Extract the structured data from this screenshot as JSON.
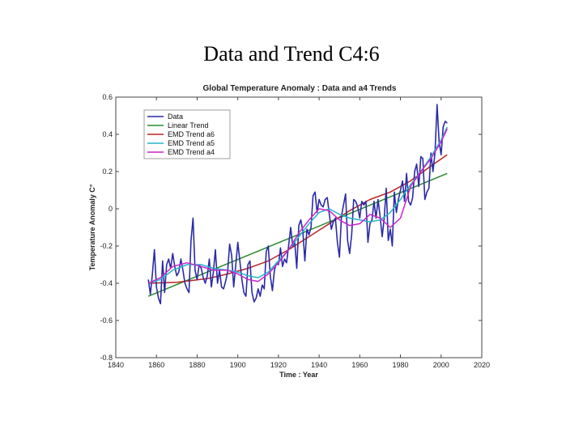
{
  "slide": {
    "title": "Data and Trend C4:6"
  },
  "chart_data": {
    "type": "line",
    "title": "Global Temperature Anomaly : Data and a4 Trends",
    "xlabel": "Time : Year",
    "ylabel": "Temperature Anomaly C°",
    "xlim": [
      1840,
      2020
    ],
    "ylim": [
      -0.8,
      0.6
    ],
    "xticks": [
      1840,
      1860,
      1880,
      1900,
      1920,
      1940,
      1960,
      1980,
      2000,
      2020
    ],
    "yticks": [
      0.6,
      0.4,
      0.2,
      0,
      -0.2,
      -0.4,
      -0.6,
      -0.8
    ],
    "ytick_labels": [
      "0.6",
      "0.4",
      "0.2",
      "0",
      "-0.2",
      "-0.4",
      "-0.6",
      "-0.8"
    ],
    "legend_position": "top-left",
    "series": [
      {
        "name": "Data",
        "color": "#2a2aa8",
        "x": [
          1856,
          1857,
          1858,
          1859,
          1860,
          1861,
          1862,
          1863,
          1864,
          1865,
          1866,
          1867,
          1868,
          1869,
          1870,
          1871,
          1872,
          1873,
          1874,
          1875,
          1876,
          1877,
          1878,
          1879,
          1880,
          1881,
          1882,
          1883,
          1884,
          1885,
          1886,
          1887,
          1888,
          1889,
          1890,
          1891,
          1892,
          1893,
          1894,
          1895,
          1896,
          1897,
          1898,
          1899,
          1900,
          1901,
          1902,
          1903,
          1904,
          1905,
          1906,
          1907,
          1908,
          1909,
          1910,
          1911,
          1912,
          1913,
          1914,
          1915,
          1916,
          1917,
          1918,
          1919,
          1920,
          1921,
          1922,
          1923,
          1924,
          1925,
          1926,
          1927,
          1928,
          1929,
          1930,
          1931,
          1932,
          1933,
          1934,
          1935,
          1936,
          1937,
          1938,
          1939,
          1940,
          1941,
          1942,
          1943,
          1944,
          1945,
          1946,
          1947,
          1948,
          1949,
          1950,
          1951,
          1952,
          1953,
          1954,
          1955,
          1956,
          1957,
          1958,
          1959,
          1960,
          1961,
          1962,
          1963,
          1964,
          1965,
          1966,
          1967,
          1968,
          1969,
          1970,
          1971,
          1972,
          1973,
          1974,
          1975,
          1976,
          1977,
          1978,
          1979,
          1980,
          1981,
          1982,
          1983,
          1984,
          1985,
          1986,
          1987,
          1988,
          1989,
          1990,
          1991,
          1992,
          1993,
          1994,
          1995,
          1996,
          1997,
          1998,
          1999,
          2000,
          2001,
          2002,
          2003
        ],
        "values": [
          -0.38,
          -0.46,
          -0.35,
          -0.22,
          -0.42,
          -0.48,
          -0.51,
          -0.28,
          -0.45,
          -0.3,
          -0.27,
          -0.32,
          -0.24,
          -0.31,
          -0.36,
          -0.34,
          -0.27,
          -0.33,
          -0.4,
          -0.43,
          -0.45,
          -0.17,
          -0.05,
          -0.33,
          -0.38,
          -0.3,
          -0.32,
          -0.37,
          -0.4,
          -0.36,
          -0.27,
          -0.42,
          -0.34,
          -0.22,
          -0.4,
          -0.33,
          -0.42,
          -0.43,
          -0.39,
          -0.34,
          -0.19,
          -0.25,
          -0.42,
          -0.3,
          -0.18,
          -0.28,
          -0.38,
          -0.45,
          -0.47,
          -0.3,
          -0.28,
          -0.45,
          -0.5,
          -0.48,
          -0.43,
          -0.47,
          -0.41,
          -0.43,
          -0.23,
          -0.2,
          -0.36,
          -0.44,
          -0.33,
          -0.29,
          -0.3,
          -0.21,
          -0.31,
          -0.27,
          -0.29,
          -0.2,
          -0.1,
          -0.2,
          -0.18,
          -0.32,
          -0.09,
          -0.06,
          -0.12,
          -0.28,
          -0.11,
          -0.14,
          -0.1,
          0.07,
          0.09,
          -0.02,
          0.05,
          0.02,
          0.01,
          0.05,
          0.06,
          -0.03,
          -0.11,
          -0.07,
          -0.05,
          -0.18,
          -0.26,
          -0.04,
          0.02,
          0.08,
          -0.17,
          -0.24,
          -0.14,
          0.05,
          0.04,
          0.01,
          -0.05,
          0.04,
          0.02,
          0.04,
          -0.18,
          -0.08,
          -0.06,
          0.04,
          -0.05,
          0.05,
          -0.04,
          -0.15,
          -0.05,
          0.11,
          -0.17,
          -0.11,
          -0.2,
          0.09,
          -0.02,
          0.05,
          0.1,
          0.15,
          0.04,
          0.19,
          0.04,
          0.02,
          0.06,
          0.2,
          0.24,
          0.12,
          0.28,
          0.27,
          0.05,
          0.09,
          0.11,
          0.3,
          0.2,
          0.3,
          0.56,
          0.36,
          0.29,
          0.44,
          0.47,
          0.46
        ]
      },
      {
        "name": "Linear Trend",
        "color": "#2a8a2a",
        "x": [
          1856,
          2003
        ],
        "values": [
          -0.47,
          0.19
        ]
      },
      {
        "name": "EMD Trend a6",
        "color": "#bb2222",
        "x": [
          1856,
          1870,
          1885,
          1895,
          1905,
          1915,
          1925,
          1935,
          1945,
          1955,
          1965,
          1975,
          1985,
          1995,
          2003
        ],
        "values": [
          -0.4,
          -0.395,
          -0.375,
          -0.35,
          -0.32,
          -0.28,
          -0.22,
          -0.15,
          -0.08,
          -0.01,
          0.05,
          0.09,
          0.15,
          0.23,
          0.29
        ]
      },
      {
        "name": "EMD Trend a5",
        "color": "#22b5cc",
        "x": [
          1856,
          1862,
          1868,
          1875,
          1882,
          1888,
          1895,
          1900,
          1905,
          1910,
          1915,
          1920,
          1925,
          1930,
          1935,
          1940,
          1945,
          1950,
          1955,
          1960,
          1965,
          1970,
          1975,
          1980,
          1985,
          1990,
          1995,
          2000,
          2003
        ],
        "values": [
          -0.4,
          -0.38,
          -0.33,
          -0.3,
          -0.3,
          -0.32,
          -0.33,
          -0.34,
          -0.36,
          -0.37,
          -0.34,
          -0.28,
          -0.22,
          -0.15,
          -0.08,
          -0.02,
          0.0,
          -0.03,
          -0.05,
          -0.06,
          -0.07,
          -0.06,
          -0.02,
          0.05,
          0.13,
          0.2,
          0.28,
          0.37,
          0.44
        ]
      },
      {
        "name": "EMD Trend a4",
        "color": "#cc22cc",
        "x": [
          1856,
          1862,
          1868,
          1875,
          1882,
          1888,
          1895,
          1900,
          1905,
          1910,
          1915,
          1920,
          1925,
          1930,
          1935,
          1940,
          1945,
          1950,
          1955,
          1960,
          1965,
          1970,
          1975,
          1980,
          1985,
          1990,
          1995,
          2000,
          2003
        ],
        "values": [
          -0.4,
          -0.37,
          -0.31,
          -0.29,
          -0.31,
          -0.33,
          -0.33,
          -0.35,
          -0.38,
          -0.39,
          -0.35,
          -0.29,
          -0.22,
          -0.13,
          -0.06,
          0.0,
          -0.01,
          -0.06,
          -0.09,
          -0.08,
          -0.03,
          -0.05,
          -0.1,
          -0.05,
          0.12,
          0.2,
          0.27,
          0.36,
          0.43
        ]
      }
    ]
  }
}
